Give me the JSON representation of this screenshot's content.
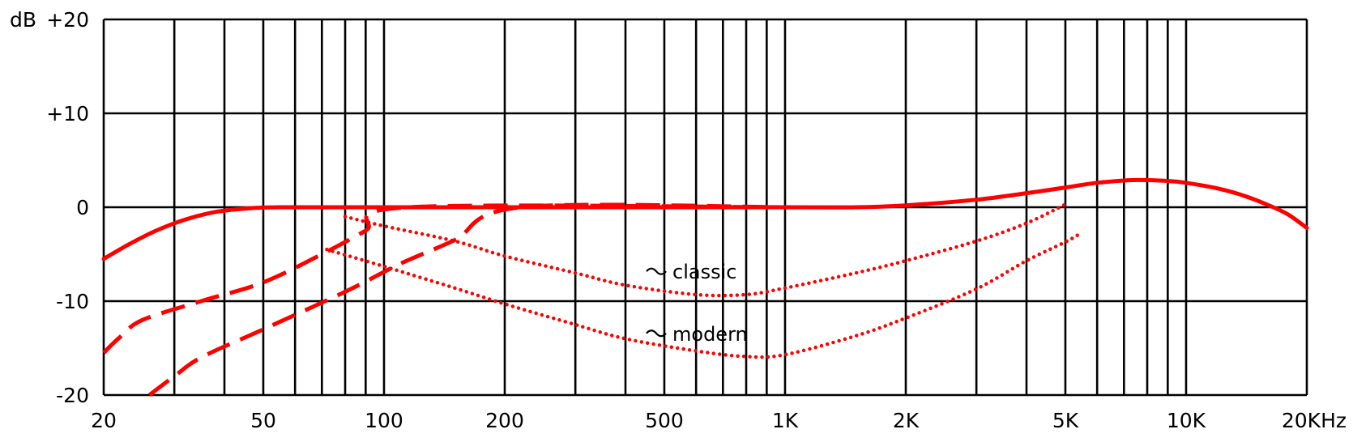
{
  "chart_data": {
    "type": "line",
    "title": "",
    "xlabel": "",
    "ylabel": "",
    "x_scale": "log",
    "xlim": [
      20,
      20000
    ],
    "ylim": [
      -20,
      20
    ],
    "grid": true,
    "y_unit_label": "dB",
    "x_ticks": [
      20,
      50,
      100,
      200,
      500,
      1000,
      2000,
      5000,
      10000,
      20000
    ],
    "x_tick_labels": [
      "20",
      "50",
      "100",
      "200",
      "500",
      "1K",
      "2K",
      "5K",
      "10K",
      "20KHz"
    ],
    "y_ticks": [
      20,
      10,
      0,
      -10,
      -20
    ],
    "y_tick_labels": [
      "+20",
      "+10",
      "0",
      "-10",
      "-20"
    ],
    "minor_x_gridlines": [
      30,
      40,
      60,
      70,
      80,
      90,
      300,
      400,
      600,
      700,
      800,
      900,
      3000,
      4000,
      6000,
      7000,
      8000,
      9000
    ],
    "line_color": "#ff0000",
    "series": [
      {
        "style": "solid",
        "points": [
          [
            20,
            -5.5
          ],
          [
            23,
            -4
          ],
          [
            27,
            -2.5
          ],
          [
            32,
            -1.3
          ],
          [
            38,
            -0.5
          ],
          [
            45,
            -0.15
          ],
          [
            55,
            0
          ],
          [
            100,
            0
          ],
          [
            300,
            0
          ],
          [
            1000,
            0
          ],
          [
            1500,
            0
          ],
          [
            2000,
            0.2
          ],
          [
            3000,
            0.8
          ],
          [
            4000,
            1.5
          ],
          [
            5000,
            2.1
          ],
          [
            6000,
            2.6
          ],
          [
            7500,
            2.9
          ],
          [
            9000,
            2.8
          ],
          [
            10000,
            2.6
          ],
          [
            12000,
            2
          ],
          [
            14000,
            1.2
          ],
          [
            16500,
            0
          ],
          [
            18000,
            -0.8
          ],
          [
            20000,
            -2.2
          ]
        ]
      },
      {
        "style": "dashed",
        "points": [
          [
            20,
            -15.5
          ],
          [
            22,
            -13.8
          ],
          [
            25,
            -12
          ],
          [
            35,
            -10
          ],
          [
            50,
            -8
          ],
          [
            70,
            -5
          ],
          [
            90,
            -2.5
          ],
          [
            115,
            0
          ],
          [
            1000,
            0
          ]
        ]
      },
      {
        "style": "dashed",
        "points": [
          [
            26,
            -20
          ],
          [
            30,
            -18
          ],
          [
            35,
            -16
          ],
          [
            50,
            -13
          ],
          [
            80,
            -9
          ],
          [
            110,
            -6
          ],
          [
            150,
            -3.5
          ],
          [
            220,
            0
          ],
          [
            1000,
            0
          ]
        ]
      },
      {
        "style": "dotted",
        "annotation": "classic",
        "points": [
          [
            80,
            -1
          ],
          [
            100,
            -2
          ],
          [
            150,
            -3.6
          ],
          [
            200,
            -5.2
          ],
          [
            300,
            -7
          ],
          [
            400,
            -8.3
          ],
          [
            600,
            -9.3
          ],
          [
            800,
            -9.3
          ],
          [
            1000,
            -8.6
          ],
          [
            1500,
            -7
          ],
          [
            2000,
            -5.7
          ],
          [
            3000,
            -3.6
          ],
          [
            4000,
            -1.7
          ],
          [
            5000,
            0.3
          ]
        ]
      },
      {
        "style": "dotted",
        "annotation": "modern",
        "points": [
          [
            72,
            -4.5
          ],
          [
            100,
            -6.3
          ],
          [
            150,
            -8.6
          ],
          [
            200,
            -10.3
          ],
          [
            300,
            -12.5
          ],
          [
            400,
            -14
          ],
          [
            600,
            -15.3
          ],
          [
            800,
            -15.9
          ],
          [
            1000,
            -15.7
          ],
          [
            1500,
            -13.7
          ],
          [
            2000,
            -11.8
          ],
          [
            3000,
            -8.7
          ],
          [
            4000,
            -5.7
          ],
          [
            5000,
            -3.7
          ],
          [
            5400,
            -2.9
          ]
        ]
      }
    ],
    "annotations": [
      "classic",
      "modern"
    ]
  }
}
